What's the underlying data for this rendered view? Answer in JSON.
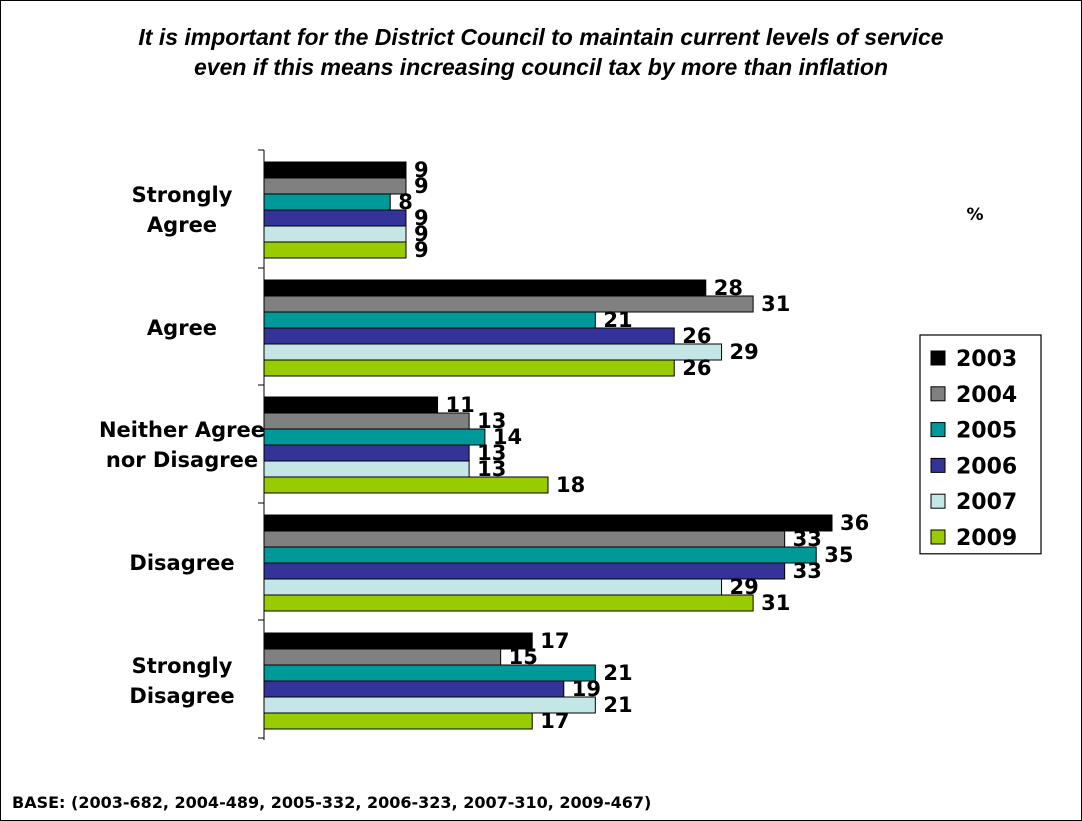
{
  "chart_data": {
    "type": "bar",
    "orientation": "horizontal",
    "title_lines": [
      "It is important for the District Council to maintain current levels of service",
      "even if this means increasing council tax by more than inflation"
    ],
    "unit_label": "%",
    "categories": [
      [
        "Strongly",
        "Agree"
      ],
      [
        "Agree"
      ],
      [
        "Neither Agree",
        "nor Disagree"
      ],
      [
        "Disagree"
      ],
      [
        "Strongly",
        "Disagree"
      ]
    ],
    "series": [
      {
        "name": "2003",
        "color": "#000000",
        "values": [
          9,
          28,
          11,
          36,
          17
        ]
      },
      {
        "name": "2004",
        "color": "#808080",
        "values": [
          9,
          31,
          13,
          33,
          15
        ]
      },
      {
        "name": "2005",
        "color": "#009999",
        "values": [
          8,
          21,
          14,
          35,
          21
        ]
      },
      {
        "name": "2006",
        "color": "#333399",
        "values": [
          9,
          26,
          13,
          33,
          19
        ]
      },
      {
        "name": "2007",
        "color": "#c5e6e6",
        "values": [
          9,
          29,
          13,
          29,
          21
        ]
      },
      {
        "name": "2009",
        "color": "#99cc00",
        "values": [
          9,
          26,
          18,
          31,
          17
        ]
      }
    ],
    "xlim": [
      0,
      36
    ],
    "grid": false,
    "legend_position": "right"
  },
  "footer": {
    "base_text": "BASE: (2003-682, 2004-489, 2005-332, 2006-323, 2007-310, 2009-467)"
  }
}
